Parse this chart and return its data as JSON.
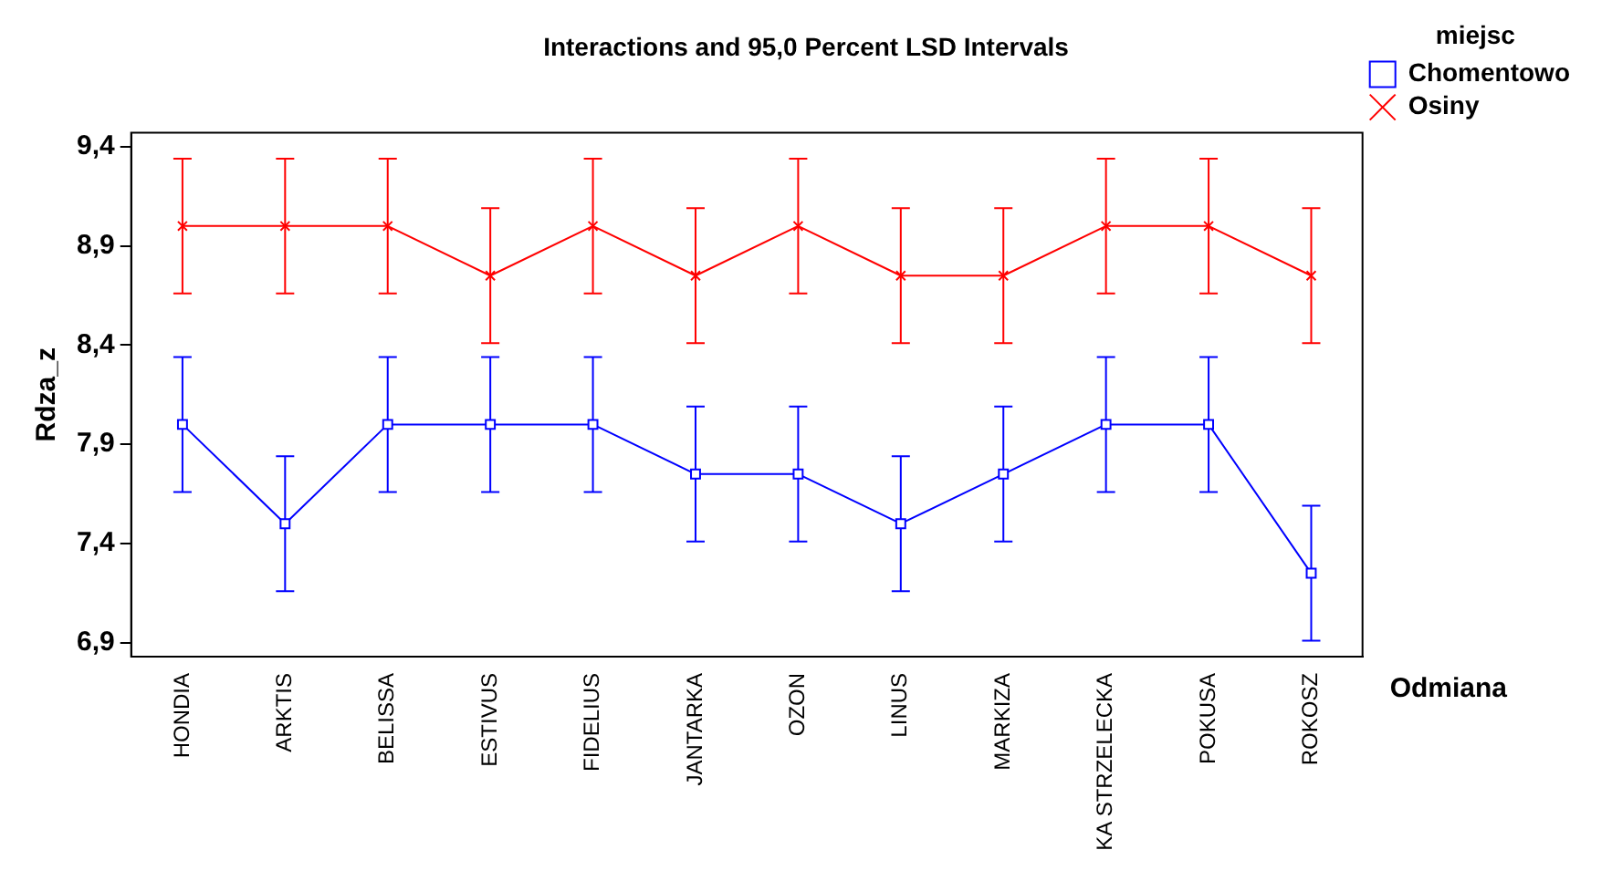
{
  "chart_data": {
    "type": "line",
    "title": "Interactions and 95,0 Percent LSD Intervals",
    "xlabel": "Odmiana",
    "ylabel": "Rdza_z",
    "legend_title": "miejsc",
    "categories": [
      "HONDIA",
      "ARKTIS",
      "BELISSA",
      "ESTIVUS",
      "FIDELIUS",
      "JANTARKA",
      "OZON",
      "LINUS",
      "MARKIZA",
      "KA STRZELECKA",
      "POKUSA",
      "ROKOSZ"
    ],
    "series": [
      {
        "name": "Chomentowo",
        "color": "#0000ff",
        "marker": "square",
        "values": [
          8.0,
          7.5,
          8.0,
          8.0,
          8.0,
          7.75,
          7.75,
          7.5,
          7.75,
          8.0,
          8.0,
          7.25
        ],
        "errors": [
          0.34,
          0.34,
          0.34,
          0.34,
          0.34,
          0.34,
          0.34,
          0.34,
          0.34,
          0.34,
          0.34,
          0.34
        ]
      },
      {
        "name": "Osiny",
        "color": "#ff0000",
        "marker": "cross",
        "values": [
          9.0,
          9.0,
          9.0,
          8.75,
          9.0,
          8.75,
          9.0,
          8.75,
          8.75,
          9.0,
          9.0,
          8.75
        ],
        "errors": [
          0.34,
          0.34,
          0.34,
          0.34,
          0.34,
          0.34,
          0.34,
          0.34,
          0.34,
          0.34,
          0.34,
          0.34
        ]
      }
    ],
    "ylim": [
      6.83,
      9.47
    ],
    "yticks": [
      {
        "value": 6.9,
        "label": "6,9"
      },
      {
        "value": 7.4,
        "label": "7,4"
      },
      {
        "value": 7.9,
        "label": "7,9"
      },
      {
        "value": 8.4,
        "label": "8,4"
      },
      {
        "value": 8.9,
        "label": "8,9"
      },
      {
        "value": 9.4,
        "label": "9,4"
      }
    ],
    "grid": false,
    "legend": "top right",
    "line_style": "solid"
  }
}
